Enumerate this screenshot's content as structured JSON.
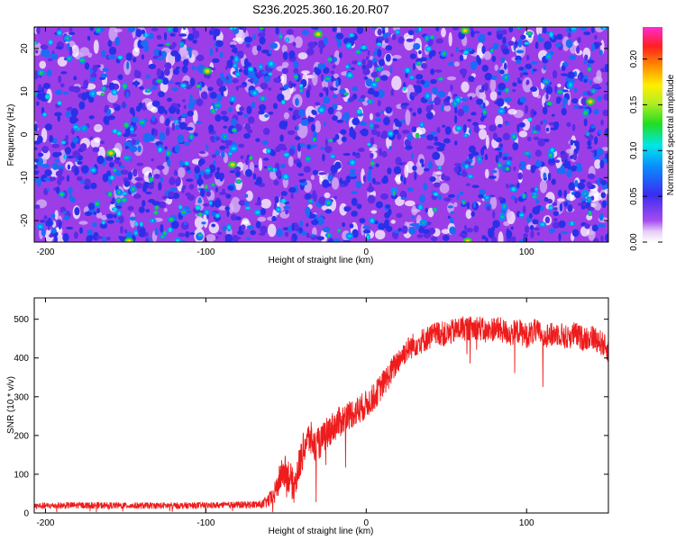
{
  "figure_title": "S236.2025.360.16.20.R07",
  "colors": {
    "snr_line": "#ee1c1c",
    "spectrogram_bg": "#9b3ee8",
    "frame": "#000000"
  },
  "chart_data": [
    {
      "type": "heatmap",
      "title": "S236.2025.360.16.20.R07",
      "xlabel": "Height of straight line (km)",
      "ylabel": "Frequency (Hz)",
      "xlim": [
        -207,
        151
      ],
      "ylim": [
        -25,
        25
      ],
      "xticks": [
        -200,
        -100,
        0,
        100
      ],
      "xtick_labels": [
        "-200",
        "-100",
        "0",
        "100"
      ],
      "yticks": [
        -20,
        -10,
        0,
        10,
        20
      ],
      "ytick_labels": [
        "-20",
        "-10",
        "0",
        "10",
        "20"
      ],
      "colorbar": {
        "label": "Normalized spectral amplitude",
        "range": [
          0.0,
          0.235
        ],
        "ticks": [
          0.0,
          0.05,
          0.1,
          0.15,
          0.2
        ],
        "tick_labels": [
          "0.00",
          "0.05",
          "0.10",
          "0.15",
          "0.20"
        ],
        "colormap": "white-purple-blue-cyan-green-yellow-orange-red-magenta"
      },
      "description": "speckle noise dominated by low amplitudes (0.02-0.06) with sparse blobs up to ~0.2"
    },
    {
      "type": "line",
      "xlabel": "Height of straight line (km)",
      "ylabel": "SNR (10 * v/v)",
      "xlim": [
        -207,
        151
      ],
      "ylim": [
        0,
        555
      ],
      "xticks": [
        -200,
        -100,
        0,
        100
      ],
      "xtick_labels": [
        "-200",
        "-100",
        "0",
        "100"
      ],
      "yticks": [
        0,
        100,
        200,
        300,
        400,
        500
      ],
      "ytick_labels": [
        "0",
        "100",
        "200",
        "300",
        "400",
        "500"
      ],
      "series": [
        {
          "name": "SNR",
          "color": "#ee1c1c",
          "x": [
            -207,
            -180,
            -150,
            -120,
            -90,
            -65,
            -58,
            -52,
            -48,
            -45,
            -42,
            -38,
            -35,
            -32,
            -28,
            -25,
            -20,
            -15,
            -10,
            -5,
            0,
            5,
            10,
            15,
            20,
            25,
            30,
            35,
            40,
            45,
            50,
            55,
            60,
            65,
            70,
            75,
            80,
            85,
            90,
            95,
            100,
            105,
            110,
            115,
            120,
            125,
            130,
            135,
            140,
            145,
            151
          ],
          "y": [
            18,
            20,
            19,
            19,
            20,
            22,
            40,
            110,
            95,
            65,
            120,
            180,
            195,
            170,
            185,
            205,
            225,
            240,
            255,
            265,
            280,
            300,
            330,
            360,
            395,
            420,
            435,
            445,
            455,
            465,
            460,
            470,
            478,
            475,
            480,
            465,
            478,
            470,
            462,
            470,
            458,
            468,
            462,
            458,
            465,
            452,
            462,
            450,
            455,
            445,
            420
          ],
          "noise_amplitude": [
            8,
            8,
            8,
            8,
            8,
            10,
            25,
            45,
            45,
            40,
            45,
            45,
            45,
            45,
            40,
            40,
            40,
            40,
            38,
            38,
            36,
            35,
            35,
            34,
            33,
            32,
            32,
            32,
            32,
            32,
            32,
            32,
            32,
            32,
            32,
            32,
            32,
            32,
            32,
            32,
            32,
            32,
            32,
            32,
            32,
            32,
            32,
            32,
            32,
            32,
            32
          ]
        }
      ]
    }
  ]
}
